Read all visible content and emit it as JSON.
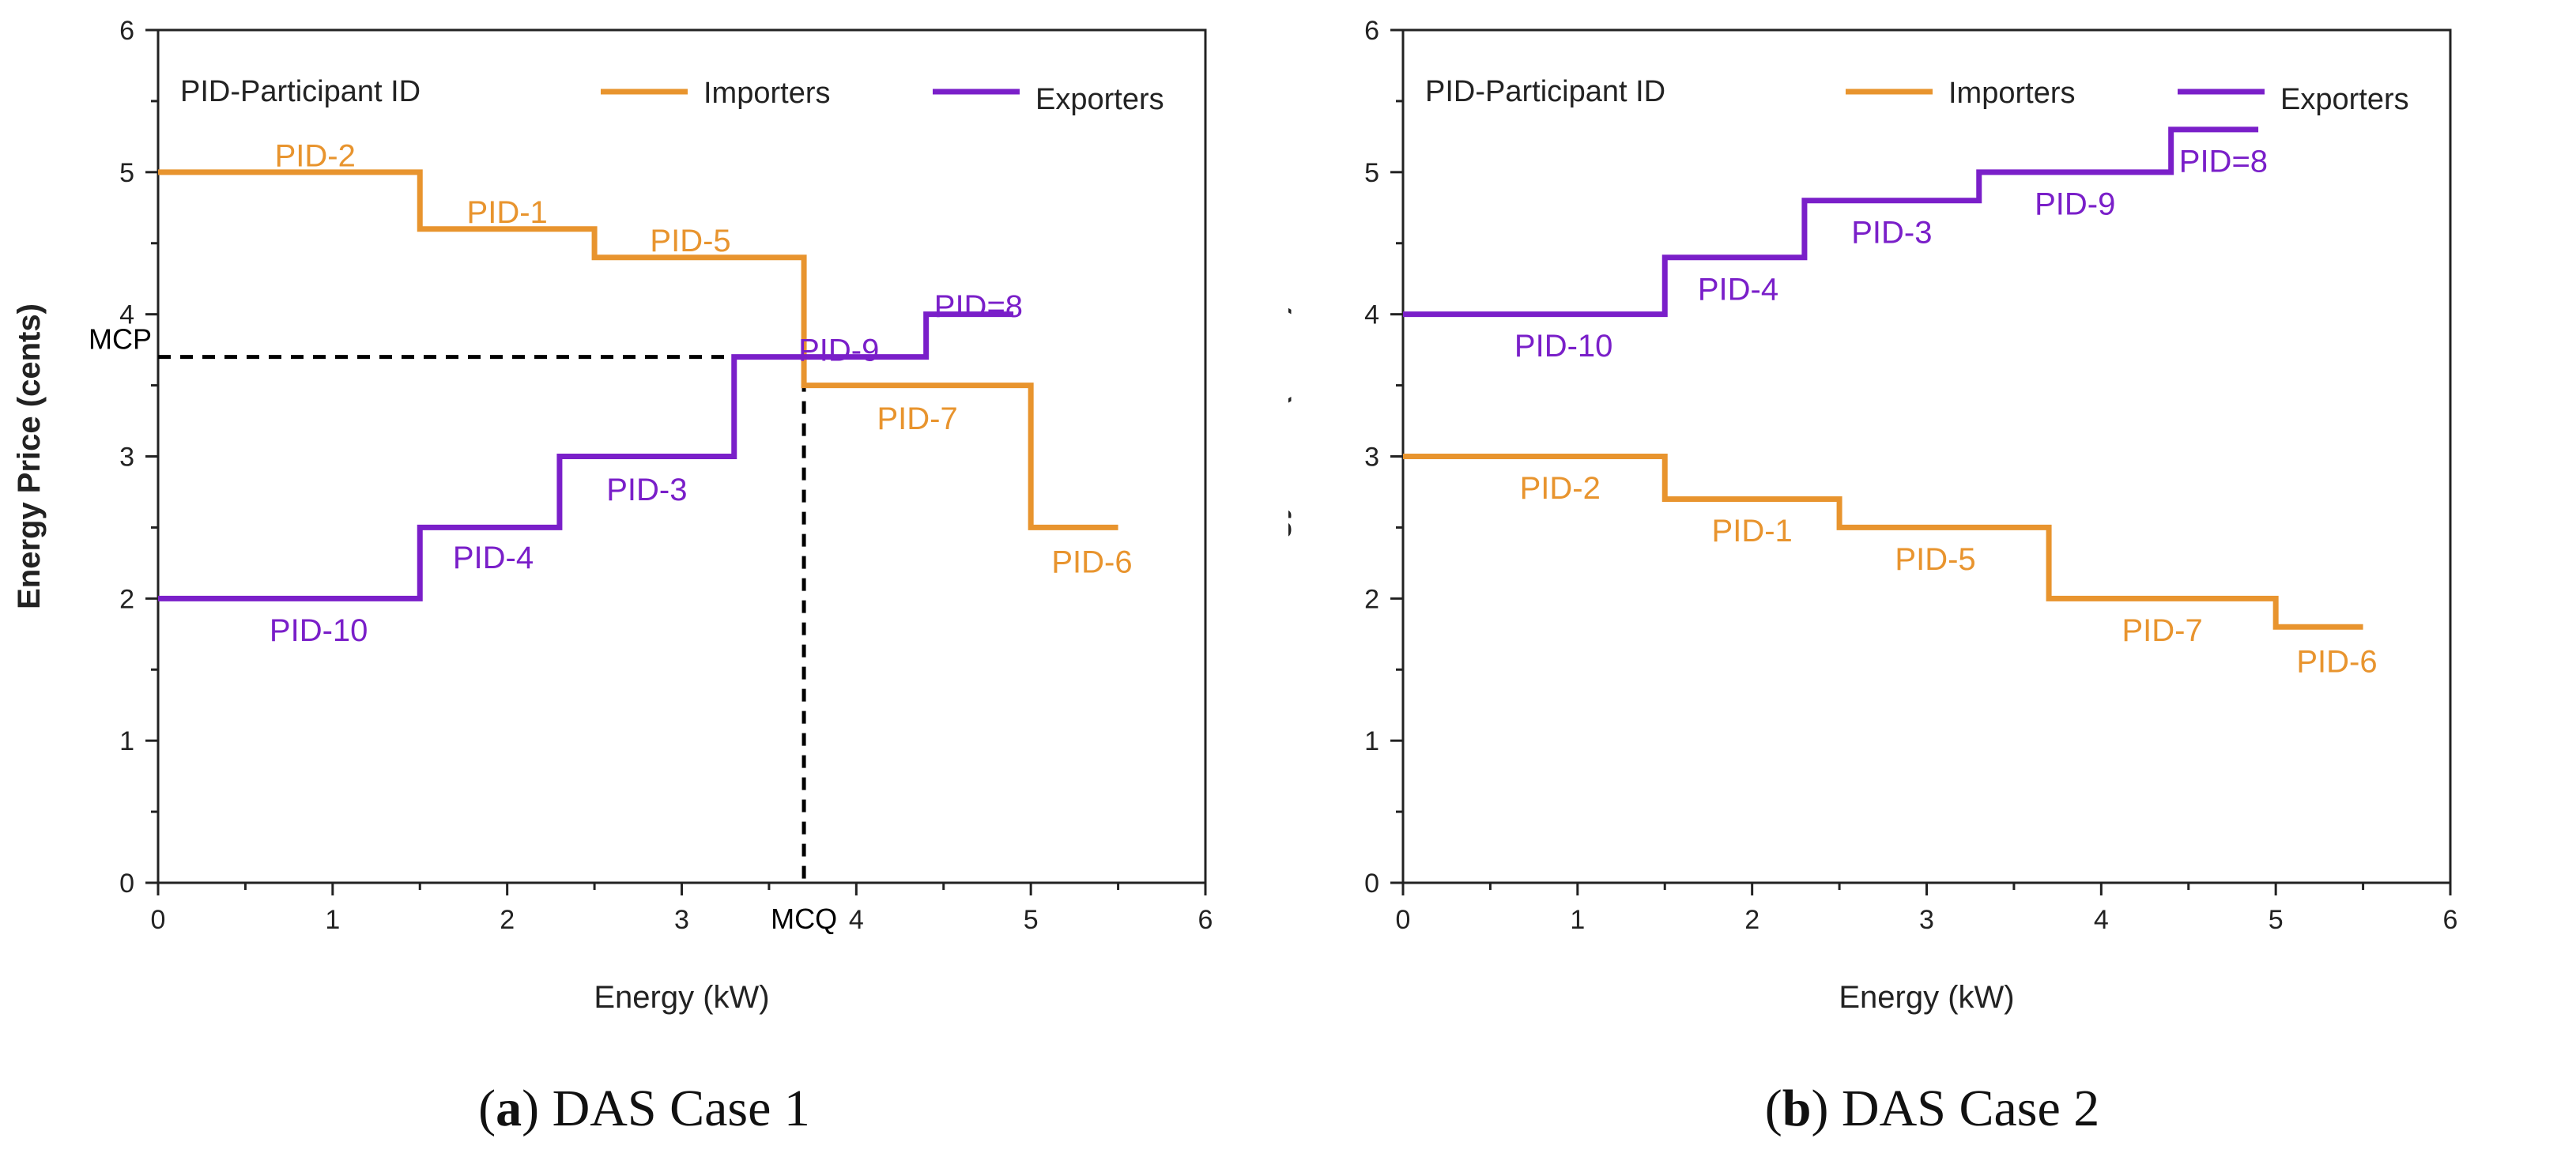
{
  "colors": {
    "importers": "#E8942E",
    "exporters": "#7A1FC9",
    "axis": "#222222",
    "reference": "#000000"
  },
  "chart_data": [
    {
      "id": "a",
      "type": "line",
      "subtype": "step",
      "caption": {
        "letter": "a",
        "text": "DAS Case 1"
      },
      "xlabel": "Energy (kW)",
      "ylabel": "Energy Price (cents)",
      "xlim": [
        0,
        6
      ],
      "ylim": [
        0,
        6
      ],
      "xticks": [
        "0",
        "1",
        "2",
        "3",
        "4",
        "5",
        "6"
      ],
      "yticks": [
        "0",
        "1",
        "2",
        "3",
        "4",
        "5",
        "6"
      ],
      "legend": {
        "position": "top",
        "title": "PID-Participant ID",
        "entries": [
          "Importers",
          "Exporters"
        ]
      },
      "series": [
        {
          "name": "Importers",
          "color_key": "importers",
          "steps": [
            {
              "x0": 0,
              "x1": 1.5,
              "y": 5.0
            },
            {
              "x0": 1.5,
              "x1": 2.5,
              "y": 4.6
            },
            {
              "x0": 2.5,
              "x1": 3.7,
              "y": 4.4
            },
            {
              "x0": 3.7,
              "x1": 5.0,
              "y": 3.5
            },
            {
              "x0": 5.0,
              "x1": 5.5,
              "y": 2.5
            }
          ],
          "labels": [
            {
              "text": "PID-2",
              "x": 0.9,
              "y": 5.12
            },
            {
              "text": "PID-1",
              "x": 2.0,
              "y": 4.72
            },
            {
              "text": "PID-5",
              "x": 3.05,
              "y": 4.52
            },
            {
              "text": "PID-7",
              "x": 4.35,
              "y": 3.27
            },
            {
              "text": "PID-6",
              "x": 5.35,
              "y": 2.26
            }
          ]
        },
        {
          "name": "Exporters",
          "color_key": "exporters",
          "steps": [
            {
              "x0": 0,
              "x1": 1.5,
              "y": 2.0
            },
            {
              "x0": 1.5,
              "x1": 2.3,
              "y": 2.5
            },
            {
              "x0": 2.3,
              "x1": 3.3,
              "y": 3.0
            },
            {
              "x0": 3.3,
              "x1": 4.4,
              "y": 3.7
            },
            {
              "x0": 4.4,
              "x1": 4.9,
              "y": 4.0
            }
          ],
          "labels": [
            {
              "text": "PID-10",
              "x": 0.92,
              "y": 1.78
            },
            {
              "text": "PID-4",
              "x": 1.92,
              "y": 2.29
            },
            {
              "text": "PID-3",
              "x": 2.8,
              "y": 2.77
            },
            {
              "text": "PID-9",
              "x": 3.9,
              "y": 3.75
            },
            {
              "text": "PID=8",
              "x": 4.7,
              "y": 4.06
            }
          ]
        }
      ],
      "reference": {
        "mcp_label": "MCP",
        "mcq_label": "MCQ",
        "mcp": 3.7,
        "mcq": 3.7
      }
    },
    {
      "id": "b",
      "type": "line",
      "subtype": "step",
      "caption": {
        "letter": "b",
        "text": "DAS Case 2"
      },
      "xlabel": "Energy (kW)",
      "ylabel": "Energy Price (cents)",
      "xlim": [
        0,
        6
      ],
      "ylim": [
        0,
        6
      ],
      "xticks": [
        "0",
        "1",
        "2",
        "3",
        "4",
        "5",
        "6"
      ],
      "yticks": [
        "0",
        "1",
        "2",
        "3",
        "4",
        "5",
        "6"
      ],
      "legend": {
        "position": "top",
        "title": "PID-Participant ID",
        "entries": [
          "Importers",
          "Exporters"
        ]
      },
      "series": [
        {
          "name": "Importers",
          "color_key": "importers",
          "steps": [
            {
              "x0": 0,
              "x1": 1.5,
              "y": 3.0
            },
            {
              "x0": 1.5,
              "x1": 2.5,
              "y": 2.7
            },
            {
              "x0": 2.5,
              "x1": 3.7,
              "y": 2.5
            },
            {
              "x0": 3.7,
              "x1": 5.0,
              "y": 2.0
            },
            {
              "x0": 5.0,
              "x1": 5.5,
              "y": 1.8
            }
          ],
          "labels": [
            {
              "text": "PID-2",
              "x": 0.9,
              "y": 2.78
            },
            {
              "text": "PID-1",
              "x": 2.0,
              "y": 2.48
            },
            {
              "text": "PID-5",
              "x": 3.05,
              "y": 2.28
            },
            {
              "text": "PID-7",
              "x": 4.35,
              "y": 1.78
            },
            {
              "text": "PID-6",
              "x": 5.35,
              "y": 1.56
            }
          ]
        },
        {
          "name": "Exporters",
          "color_key": "exporters",
          "steps": [
            {
              "x0": 0,
              "x1": 1.5,
              "y": 4.0
            },
            {
              "x0": 1.5,
              "x1": 2.3,
              "y": 4.4
            },
            {
              "x0": 2.3,
              "x1": 3.3,
              "y": 4.8
            },
            {
              "x0": 3.3,
              "x1": 4.4,
              "y": 5.0
            },
            {
              "x0": 4.4,
              "x1": 4.9,
              "y": 5.3
            }
          ],
          "labels": [
            {
              "text": "PID-10",
              "x": 0.92,
              "y": 3.78
            },
            {
              "text": "PID-4",
              "x": 1.92,
              "y": 4.18
            },
            {
              "text": "PID-3",
              "x": 2.8,
              "y": 4.58
            },
            {
              "text": "PID-9",
              "x": 3.85,
              "y": 4.78
            },
            {
              "text": "PID=8",
              "x": 4.7,
              "y": 5.08
            }
          ]
        }
      ]
    }
  ]
}
